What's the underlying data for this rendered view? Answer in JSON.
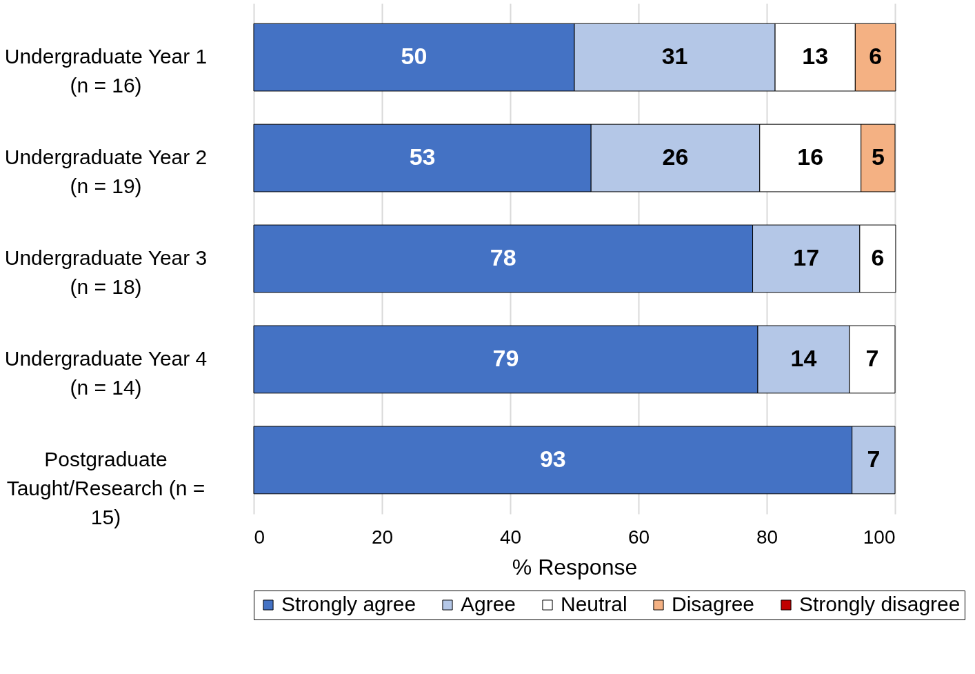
{
  "chart_data": {
    "type": "bar",
    "orientation": "horizontal",
    "stacked": true,
    "categories": [
      "Undergraduate Year 1 (n = 16)",
      "Undergraduate Year 2 (n = 19)",
      "Undergraduate Year 3 (n = 18)",
      "Undergraduate Year 4 (n = 14)",
      "Postgraduate Taught/Research (n = 15)"
    ],
    "series": [
      {
        "name": "Strongly agree",
        "color": "#4472c4",
        "values": [
          50,
          52.6,
          77.8,
          78.6,
          93.3
        ],
        "value_labels": [
          "50",
          "53",
          "78",
          "79",
          "93"
        ]
      },
      {
        "name": "Agree",
        "color": "#b4c7e7",
        "values": [
          31.3,
          26.3,
          16.7,
          14.3,
          6.7
        ],
        "value_labels": [
          "31",
          "26",
          "17",
          "14",
          "7"
        ]
      },
      {
        "name": "Neutral",
        "color": "#ffffff",
        "values": [
          12.5,
          15.8,
          5.6,
          7.1,
          null
        ],
        "value_labels": [
          "13",
          "16",
          "6",
          "7",
          null
        ]
      },
      {
        "name": "Disagree",
        "color": "#f4b183",
        "values": [
          6.3,
          5.3,
          null,
          null,
          null
        ],
        "value_labels": [
          "6",
          "5",
          null,
          null,
          null
        ]
      },
      {
        "name": "Strongly disagree",
        "color": "#c00000",
        "values": [
          null,
          null,
          null,
          null,
          null
        ]
      }
    ],
    "xlabel": "% Response",
    "xlim": [
      0,
      100
    ],
    "xticks": [
      0,
      20,
      40,
      60,
      80,
      100
    ],
    "grid": "x",
    "legend": "bottom"
  }
}
